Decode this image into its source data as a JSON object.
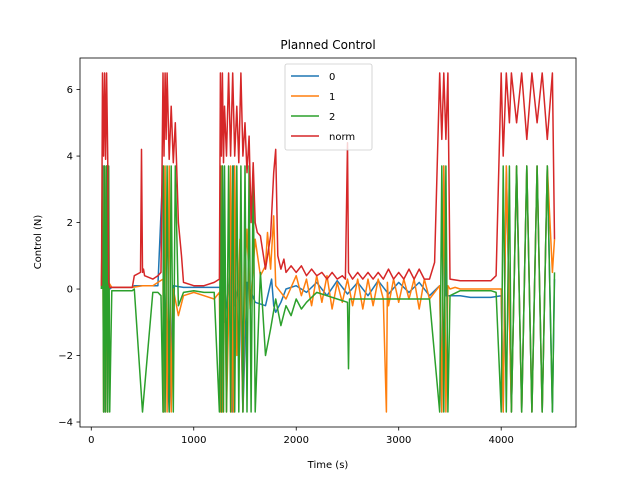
{
  "chart_data": {
    "type": "line",
    "title": "Planned Control",
    "xlabel": "Time (s)",
    "ylabel": "Control (N)",
    "xlim": [
      -110,
      4730
    ],
    "ylim": [
      -4.15,
      6.95
    ],
    "xticks": [
      0,
      1000,
      2000,
      3000,
      4000
    ],
    "xtick_labels": [
      "0",
      "1000",
      "2000",
      "3000",
      "4000"
    ],
    "yticks": [
      -4,
      -2,
      0,
      2,
      4,
      6
    ],
    "ytick_labels": [
      "−4",
      "−2",
      "0",
      "2",
      "4",
      "6"
    ],
    "grid": false,
    "legend": {
      "placement": "upper-center"
    },
    "series": [
      {
        "name": "0",
        "color": "#1f77b4",
        "x": [
          100,
          120,
          125,
          150,
          160,
          170,
          180,
          200,
          400,
          420,
          500,
          650,
          700,
          705,
          710,
          760,
          800,
          900,
          1260,
          1270,
          1280,
          1300,
          1360,
          1380,
          1390,
          1400,
          1450,
          1480,
          1520,
          1600,
          1700,
          1760,
          1780,
          1800,
          1850,
          1900,
          2000,
          2100,
          2200,
          2300,
          2400,
          2500,
          2600,
          2700,
          2800,
          2900,
          3000,
          3100,
          3200,
          3300,
          3400,
          3420,
          3440,
          3460,
          3500,
          3550,
          3600,
          3700,
          3800,
          3900,
          4000,
          4020,
          4050,
          4100,
          4150,
          4200,
          4250,
          4300,
          4350,
          4400,
          4450,
          4500,
          4520
        ],
        "values": [
          0.0,
          3.7,
          -3.7,
          3.7,
          -3.7,
          0.0,
          0.0,
          0.05,
          0.05,
          0.1,
          0.1,
          0.1,
          3.7,
          -3.7,
          0.1,
          -3.7,
          0.1,
          0.05,
          0.05,
          -3.7,
          3.7,
          -1.0,
          0.6,
          -3.7,
          3.7,
          -0.5,
          0.3,
          -3.7,
          0.2,
          -0.4,
          -0.5,
          0.3,
          -0.5,
          -0.7,
          -0.4,
          0.0,
          0.1,
          -0.1,
          0.2,
          -0.2,
          0.25,
          -0.15,
          0.2,
          -0.2,
          0.25,
          -0.15,
          0.2,
          -0.1,
          0.2,
          -0.2,
          0.1,
          -3.7,
          3.7,
          -0.2,
          -0.2,
          -0.2,
          -0.2,
          -0.25,
          -0.25,
          -0.25,
          -0.2,
          -3.7,
          3.7,
          -3.7,
          3.7,
          -3.7,
          3.7,
          -3.7,
          3.7,
          -3.7,
          3.7,
          -3.7,
          0.3
        ]
      },
      {
        "name": "1",
        "color": "#ff7f0e",
        "x": [
          100,
          110,
          120,
          130,
          140,
          150,
          160,
          170,
          200,
          400,
          500,
          600,
          650,
          700,
          705,
          720,
          740,
          760,
          780,
          800,
          850,
          900,
          1000,
          1100,
          1200,
          1250,
          1260,
          1270,
          1280,
          1300,
          1320,
          1350,
          1360,
          1370,
          1380,
          1390,
          1400,
          1420,
          1450,
          1480,
          1500,
          1520,
          1550,
          1600,
          1650,
          1700,
          1720,
          1750,
          1780,
          1800,
          1850,
          1900,
          2000,
          2050,
          2100,
          2150,
          2200,
          2250,
          2300,
          2350,
          2400,
          2450,
          2500,
          2550,
          2600,
          2650,
          2700,
          2750,
          2800,
          2850,
          2880,
          2890,
          2900,
          2950,
          3000,
          3050,
          3100,
          3150,
          3200,
          3250,
          3300,
          3400,
          3420,
          3440,
          3460,
          3480,
          3500,
          3550,
          3600,
          3700,
          3800,
          3900,
          3950,
          4000,
          4020,
          4050,
          4100,
          4150,
          4200,
          4250,
          4300,
          4350,
          4400,
          4450,
          4500,
          4520
        ],
        "values": [
          0.0,
          3.7,
          -3.7,
          3.7,
          -3.7,
          3.7,
          -3.7,
          0.2,
          0.05,
          0.05,
          0.1,
          0.1,
          0.2,
          0.3,
          -3.7,
          3.7,
          -3.7,
          3.7,
          -3.7,
          0.0,
          -0.8,
          -0.2,
          -0.1,
          -0.2,
          -0.3,
          -0.1,
          -3.7,
          3.7,
          -3.7,
          1.0,
          -3.7,
          0.5,
          3.7,
          -3.7,
          1.5,
          -3.7,
          3.7,
          -2.0,
          1.5,
          -3.7,
          0.5,
          1.8,
          -0.6,
          1.5,
          0.4,
          0.7,
          1.7,
          0.6,
          2.2,
          0.1,
          -0.1,
          -0.3,
          0.4,
          -0.2,
          0.3,
          -0.5,
          0.4,
          -0.4,
          0.4,
          -0.6,
          0.2,
          -0.4,
          0.3,
          -0.5,
          0.3,
          -0.6,
          0.3,
          -0.5,
          0.3,
          -0.3,
          -3.7,
          0.2,
          -0.5,
          0.3,
          -0.4,
          0.3,
          -0.3,
          0.3,
          -0.6,
          0.3,
          -0.3,
          0.1,
          -3.7,
          3.7,
          -3.7,
          0.1,
          0.0,
          0.05,
          0.0,
          0.0,
          0.0,
          0.0,
          0.0,
          0.0,
          -3.7,
          3.7,
          -3.7,
          3.7,
          -3.7,
          3.7,
          -3.7,
          3.7,
          -3.7,
          3.7,
          0.5,
          1.5
        ]
      },
      {
        "name": "2",
        "color": "#2ca02c",
        "x": [
          100,
          110,
          120,
          130,
          140,
          150,
          160,
          170,
          180,
          200,
          400,
          420,
          500,
          600,
          650,
          680,
          700,
          705,
          720,
          740,
          760,
          780,
          800,
          820,
          850,
          900,
          1000,
          1100,
          1200,
          1250,
          1260,
          1270,
          1280,
          1290,
          1300,
          1320,
          1340,
          1360,
          1380,
          1400,
          1420,
          1440,
          1460,
          1480,
          1500,
          1520,
          1540,
          1560,
          1580,
          1600,
          1650,
          1700,
          1750,
          1800,
          1850,
          1900,
          1950,
          2000,
          2050,
          2100,
          2200,
          2300,
          2400,
          2500,
          2510,
          2520,
          2600,
          2700,
          2800,
          2900,
          3000,
          3100,
          3200,
          3300,
          3400,
          3420,
          3440,
          3460,
          3480,
          3500,
          3600,
          3700,
          3800,
          3900,
          3950,
          4000,
          4020,
          4050,
          4080,
          4100,
          4150,
          4200,
          4250,
          4300,
          4350,
          4400,
          4450,
          4500,
          4520
        ],
        "values": [
          0.0,
          3.7,
          -3.7,
          3.7,
          -3.7,
          3.7,
          -3.7,
          3.7,
          -3.7,
          -0.05,
          -0.05,
          0.0,
          -3.7,
          -0.1,
          -0.1,
          -0.2,
          -3.7,
          3.7,
          -3.7,
          3.7,
          -3.7,
          3.7,
          -3.7,
          3.7,
          -0.5,
          -0.1,
          -0.05,
          -0.1,
          -0.1,
          -3.7,
          3.7,
          -3.7,
          3.7,
          -3.7,
          3.7,
          -3.7,
          3.7,
          -3.7,
          3.7,
          -3.7,
          3.7,
          -3.7,
          3.7,
          -3.7,
          3.7,
          -3.7,
          3.7,
          -3.7,
          3.7,
          -3.7,
          0.5,
          -2.0,
          -1.2,
          -0.3,
          -1.1,
          -0.5,
          -0.8,
          -0.3,
          -0.6,
          -0.4,
          -0.1,
          -0.2,
          -0.3,
          -0.4,
          -2.4,
          -0.3,
          -0.3,
          -0.3,
          -0.3,
          -0.3,
          -0.3,
          -0.3,
          -0.3,
          -0.3,
          -3.7,
          3.7,
          -3.7,
          3.7,
          -3.7,
          -0.2,
          -0.05,
          -0.05,
          -0.05,
          -0.05,
          -0.1,
          -3.7,
          3.7,
          -3.7,
          3.7,
          -3.7,
          3.7,
          -3.7,
          3.7,
          -3.7,
          3.7,
          -3.7,
          3.7,
          -3.7,
          0.5
        ]
      },
      {
        "name": "norm",
        "color": "#d62728",
        "x": [
          100,
          110,
          120,
          130,
          140,
          150,
          160,
          170,
          180,
          200,
          400,
          420,
          480,
          490,
          500,
          510,
          520,
          600,
          650,
          680,
          700,
          710,
          720,
          730,
          740,
          760,
          780,
          800,
          820,
          850,
          880,
          900,
          1000,
          1100,
          1200,
          1250,
          1260,
          1270,
          1280,
          1290,
          1300,
          1320,
          1340,
          1360,
          1380,
          1400,
          1420,
          1440,
          1460,
          1480,
          1500,
          1520,
          1540,
          1560,
          1580,
          1600,
          1620,
          1650,
          1700,
          1750,
          1780,
          1800,
          1820,
          1850,
          1880,
          1900,
          1950,
          2000,
          2050,
          2100,
          2150,
          2200,
          2250,
          2300,
          2350,
          2400,
          2450,
          2480,
          2500,
          2510,
          2550,
          2600,
          2650,
          2700,
          2750,
          2800,
          2850,
          2900,
          2950,
          3000,
          3050,
          3100,
          3150,
          3200,
          3250,
          3300,
          3350,
          3400,
          3420,
          3440,
          3460,
          3480,
          3500,
          3600,
          3700,
          3800,
          3900,
          3950,
          4000,
          4020,
          4050,
          4080,
          4100,
          4150,
          4200,
          4250,
          4300,
          4350,
          4400,
          4450,
          4500,
          4520
        ],
        "values": [
          0.1,
          6.5,
          4.0,
          6.5,
          3.9,
          6.5,
          4.0,
          0.2,
          0.05,
          0.05,
          0.05,
          0.4,
          0.5,
          4.2,
          0.5,
          0.6,
          0.4,
          0.3,
          0.4,
          0.5,
          6.5,
          4.0,
          6.5,
          4.5,
          6.5,
          3.9,
          5.5,
          3.8,
          5.0,
          2.0,
          1.0,
          0.2,
          0.1,
          0.1,
          0.2,
          0.3,
          6.5,
          4.0,
          6.5,
          3.8,
          5.5,
          4.0,
          6.5,
          4.0,
          6.5,
          4.0,
          5.5,
          3.8,
          6.5,
          4.0,
          5.0,
          3.5,
          4.6,
          2.0,
          3.8,
          2.0,
          1.7,
          1.6,
          0.6,
          1.6,
          3.5,
          4.2,
          1.0,
          0.6,
          0.9,
          0.5,
          0.7,
          0.5,
          0.7,
          0.4,
          0.6,
          0.4,
          0.5,
          0.3,
          0.5,
          0.3,
          0.4,
          0.3,
          4.4,
          0.5,
          0.3,
          0.5,
          0.3,
          0.5,
          0.3,
          0.5,
          0.3,
          0.6,
          0.3,
          0.5,
          0.3,
          0.6,
          0.3,
          0.6,
          0.3,
          0.3,
          0.8,
          6.5,
          4.5,
          6.5,
          4.5,
          6.5,
          0.3,
          0.25,
          0.25,
          0.25,
          0.25,
          0.4,
          6.5,
          4.0,
          6.5,
          5.0,
          6.5,
          5.0,
          6.5,
          4.5,
          6.5,
          5.0,
          6.5,
          4.5,
          6.5,
          1.5
        ]
      }
    ]
  }
}
